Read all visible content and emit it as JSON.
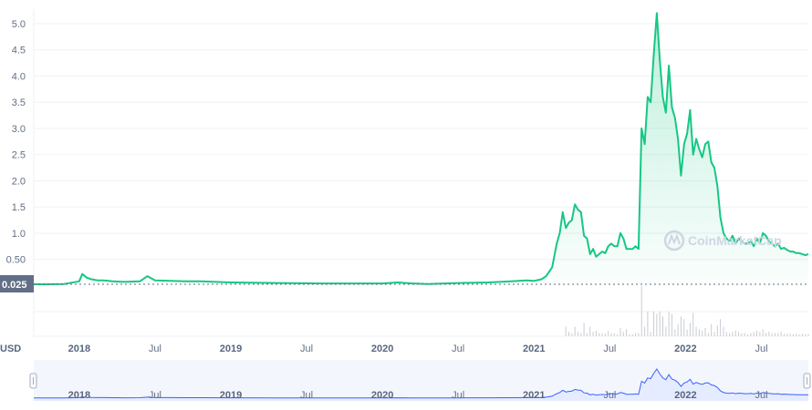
{
  "chart_data": {
    "type": "area",
    "currency_label": "USD",
    "watermark": "CoinMarketCap",
    "baseline_label": "0.025",
    "y_ticks": [
      "0.50",
      "1.0",
      "1.5",
      "2.0",
      "2.5",
      "3.0",
      "3.5",
      "4.0",
      "4.5",
      "5.0"
    ],
    "x_tick_labels": [
      "2018",
      "Jul",
      "2019",
      "Jul",
      "2020",
      "Jul",
      "2021",
      "Jul",
      "2022",
      "Jul"
    ],
    "x_tick_bold": [
      true,
      false,
      true,
      false,
      true,
      false,
      true,
      false,
      true,
      false
    ],
    "navigator_tick_labels": [
      "2018",
      "Jul",
      "2019",
      "Jul",
      "2020",
      "Jul",
      "2021",
      "Jul",
      "2022",
      "Jul"
    ],
    "colors": {
      "line": "#16c784",
      "fill": "#16c784",
      "navigator_line": "#3861fb",
      "navigator_fill": "#e6ecff",
      "volume": "#c9ccd3"
    },
    "x_unit": "fractional year",
    "series": [
      {
        "x": [
          2017.7,
          2017.8,
          2017.9,
          2018.0,
          2018.02,
          2018.05,
          2018.08,
          2018.12,
          2018.16,
          2018.22,
          2018.3,
          2018.4,
          2018.45,
          2018.5,
          2018.6,
          2018.7,
          2018.8,
          2019.0,
          2019.3,
          2019.6,
          2019.9,
          2020.0,
          2020.1,
          2020.2,
          2020.3,
          2020.5,
          2020.7,
          2020.85,
          2020.95,
          2021.0,
          2021.05,
          2021.08,
          2021.12,
          2021.15,
          2021.17,
          2021.19,
          2021.21,
          2021.23,
          2021.25,
          2021.27,
          2021.29,
          2021.31,
          2021.33,
          2021.35,
          2021.37,
          2021.39,
          2021.41,
          2021.43,
          2021.45,
          2021.47,
          2021.49,
          2021.51,
          2021.53,
          2021.55,
          2021.57,
          2021.59,
          2021.61,
          2021.63,
          2021.65,
          2021.67,
          2021.69,
          2021.71,
          2021.73,
          2021.75,
          2021.77,
          2021.79,
          2021.81,
          2021.83,
          2021.85,
          2021.87,
          2021.89,
          2021.91,
          2021.93,
          2021.95,
          2021.97,
          2021.99,
          2022.01,
          2022.03,
          2022.05,
          2022.07,
          2022.09,
          2022.11,
          2022.13,
          2022.15,
          2022.17,
          2022.19,
          2022.21,
          2022.23,
          2022.25,
          2022.27,
          2022.29,
          2022.31,
          2022.33,
          2022.35,
          2022.37,
          2022.39,
          2022.41,
          2022.43,
          2022.45,
          2022.47,
          2022.49,
          2022.51,
          2022.53,
          2022.55,
          2022.57,
          2022.59,
          2022.61,
          2022.63,
          2022.65,
          2022.67,
          2022.69,
          2022.71,
          2022.73,
          2022.75,
          2022.77,
          2022.79,
          2022.81
        ],
        "y": [
          0.025,
          0.025,
          0.03,
          0.08,
          0.22,
          0.15,
          0.12,
          0.1,
          0.1,
          0.08,
          0.07,
          0.08,
          0.18,
          0.1,
          0.09,
          0.08,
          0.08,
          0.06,
          0.05,
          0.04,
          0.04,
          0.04,
          0.06,
          0.04,
          0.03,
          0.05,
          0.06,
          0.08,
          0.1,
          0.09,
          0.12,
          0.18,
          0.35,
          0.8,
          1.0,
          1.4,
          1.1,
          1.2,
          1.25,
          1.55,
          1.45,
          1.4,
          0.95,
          0.9,
          0.6,
          0.7,
          0.55,
          0.6,
          0.65,
          0.62,
          0.75,
          0.8,
          0.75,
          0.75,
          1.0,
          0.9,
          0.7,
          0.7,
          0.7,
          0.75,
          0.7,
          3.0,
          2.7,
          3.6,
          3.5,
          4.4,
          5.2,
          4.3,
          3.6,
          3.3,
          4.2,
          3.4,
          3.2,
          2.8,
          2.1,
          2.7,
          2.9,
          3.35,
          2.5,
          2.8,
          2.6,
          2.45,
          2.7,
          2.75,
          2.35,
          2.25,
          1.9,
          1.3,
          1.0,
          0.9,
          0.85,
          0.95,
          0.8,
          0.9,
          0.85,
          0.8,
          0.8,
          0.85,
          0.75,
          0.9,
          0.8,
          1.0,
          0.95,
          0.85,
          0.8,
          0.75,
          0.8,
          0.7,
          0.72,
          0.68,
          0.65,
          0.65,
          0.62,
          0.62,
          0.6,
          0.58,
          0.6
        ]
      }
    ]
  }
}
